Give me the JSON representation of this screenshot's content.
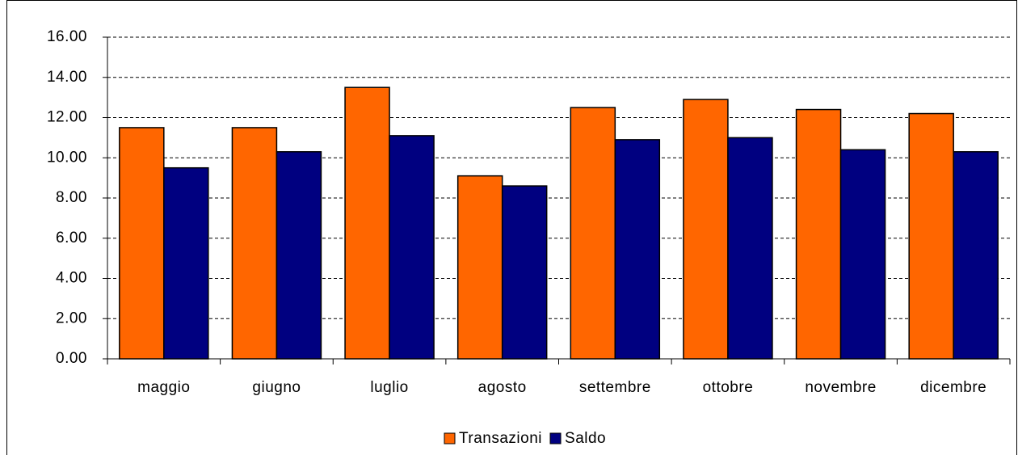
{
  "chart_data": {
    "type": "bar",
    "categories": [
      "maggio",
      "giugno",
      "luglio",
      "agosto",
      "settembre",
      "ottobre",
      "novembre",
      "dicembre"
    ],
    "series": [
      {
        "name": "Transazioni",
        "color": "#ff6600",
        "values": [
          11.5,
          11.5,
          13.5,
          9.1,
          12.5,
          12.9,
          12.4,
          12.2
        ]
      },
      {
        "name": "Saldo",
        "color": "#000080",
        "values": [
          9.5,
          10.3,
          11.1,
          8.6,
          10.9,
          11.0,
          10.4,
          10.3
        ]
      }
    ],
    "ylim": [
      0,
      16
    ],
    "yticks": [
      {
        "value": 0,
        "label": "0.00"
      },
      {
        "value": 2,
        "label": "2.00"
      },
      {
        "value": 4,
        "label": "4.00"
      },
      {
        "value": 6,
        "label": "6.00"
      },
      {
        "value": 8,
        "label": "8.00"
      },
      {
        "value": 10,
        "label": "10.00"
      },
      {
        "value": 12,
        "label": "12.00"
      },
      {
        "value": 14,
        "label": "14.00"
      },
      {
        "value": 16,
        "label": "16.00"
      }
    ],
    "grid": true,
    "legend": "bottom"
  }
}
